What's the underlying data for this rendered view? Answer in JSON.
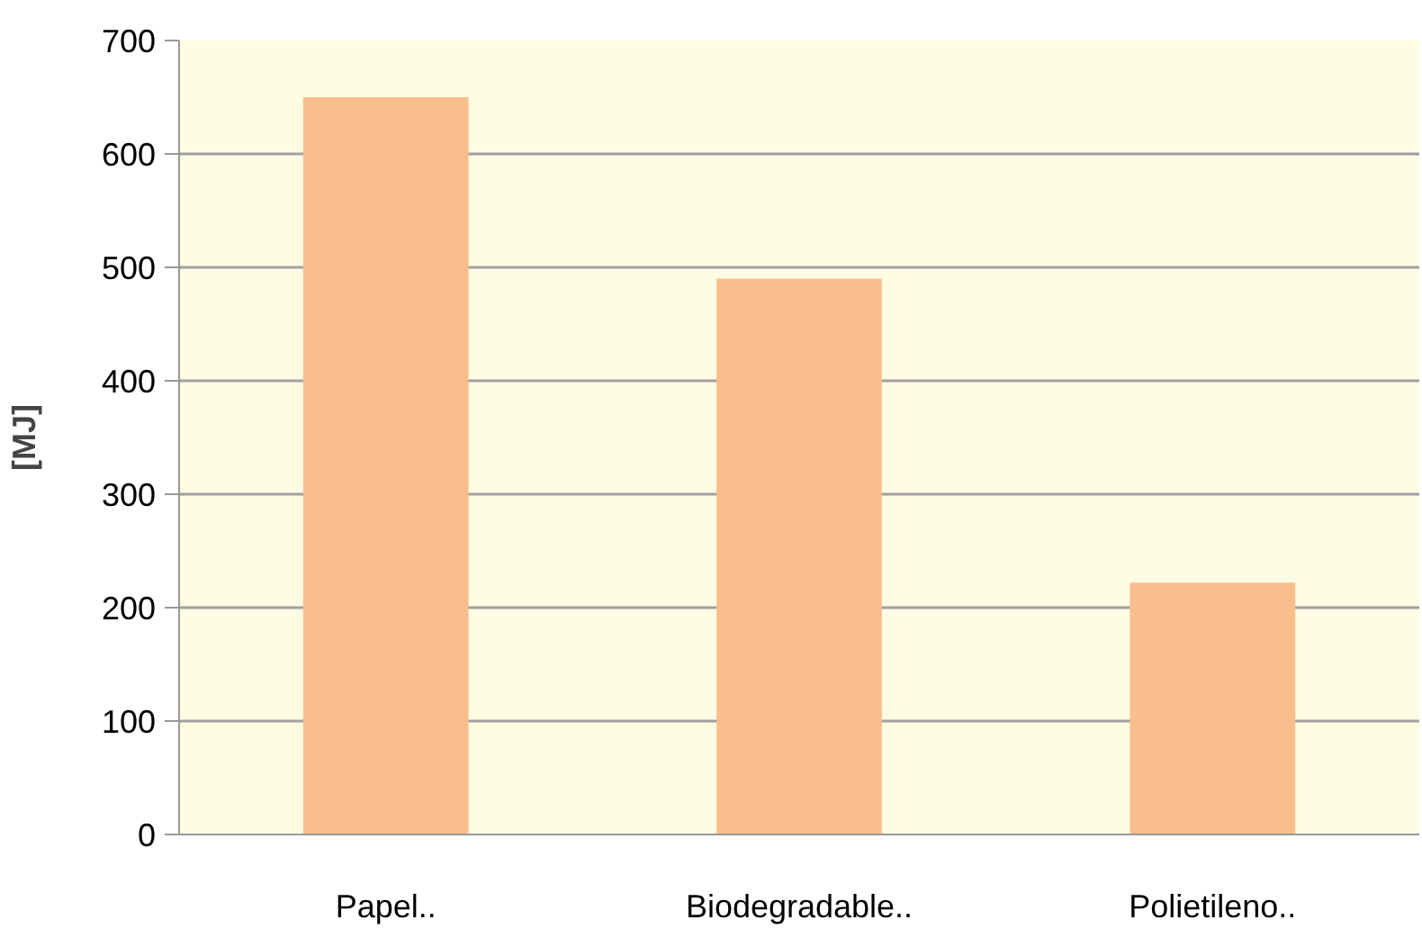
{
  "chart_data": {
    "type": "bar",
    "ylabel": "[MJ]",
    "categories": [
      "Papel..",
      "Biodegradable..",
      "Polietileno.."
    ],
    "values": [
      650,
      490,
      222
    ],
    "color": "#f8be8c",
    "ylim": [
      0,
      700
    ],
    "yticks": [
      0,
      100,
      200,
      300,
      400,
      500,
      600,
      700
    ],
    "grid": "y"
  }
}
